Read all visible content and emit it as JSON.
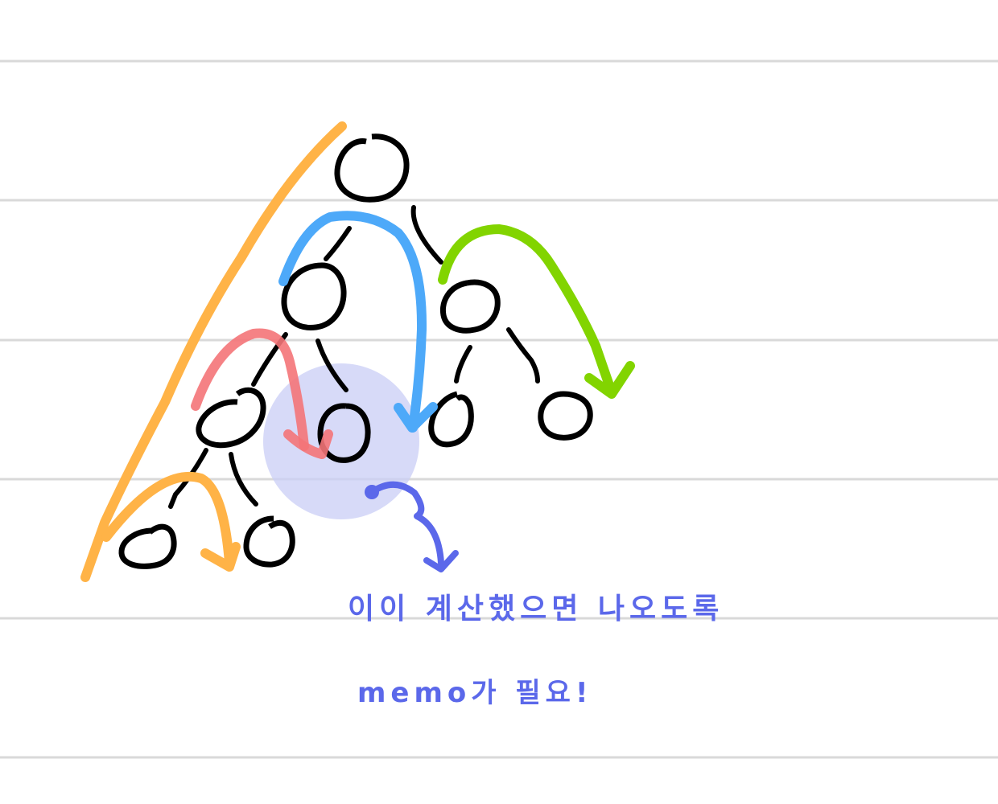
{
  "colors": {
    "paper": "#ffffff",
    "ruled_line": "#d9d9d9",
    "node_ink": "#000000",
    "orange_arrow": "#ffb347",
    "blue_arrow": "#4da9f9",
    "green_arrow": "#82d400",
    "red_arrow": "#f47478",
    "highlight_circle": "#c9cdf6",
    "note_ink": "#5b68ea"
  },
  "tree": {
    "levels": 4
  },
  "notes": [
    {
      "text": "이이 계산했으면 나오도록"
    },
    {
      "text": "memo가 필요!"
    }
  ]
}
